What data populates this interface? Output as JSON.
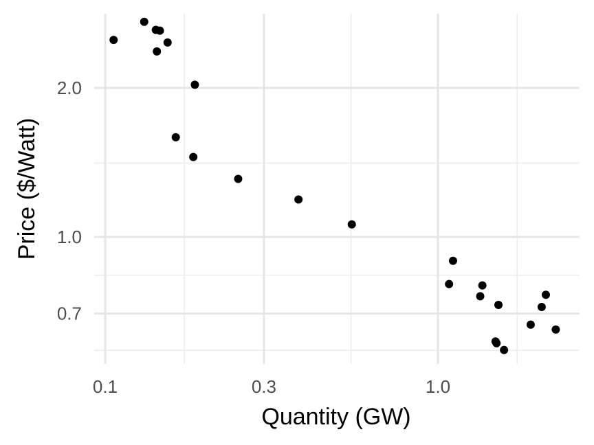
{
  "chart_data": {
    "type": "scatter",
    "title": "",
    "xlabel": "Quantity (GW)",
    "ylabel": "Price ($/Watt)",
    "x_scale": "log10",
    "y_scale": "log10",
    "xlim": [
      0.1,
      3.1
    ],
    "ylim": [
      0.54,
      2.85
    ],
    "x_ticks": [
      {
        "value": 0.1,
        "label": "0.1"
      },
      {
        "value": 0.3,
        "label": "0.3"
      },
      {
        "value": 1.0,
        "label": "1.0"
      }
    ],
    "y_ticks": [
      {
        "value": 0.7,
        "label": "0.7"
      },
      {
        "value": 1.0,
        "label": "1.0"
      },
      {
        "value": 2.0,
        "label": "2.0"
      }
    ],
    "x_minor_gridlines": [
      0.173,
      0.548,
      1.73
    ],
    "y_minor_gridlines": [
      0.59,
      0.837,
      1.41
    ],
    "grid": true,
    "legend": "none",
    "point_color": "#000000",
    "points": [
      {
        "x": 0.106,
        "y": 2.5
      },
      {
        "x": 0.131,
        "y": 2.72
      },
      {
        "x": 0.142,
        "y": 2.62
      },
      {
        "x": 0.146,
        "y": 2.61
      },
      {
        "x": 0.154,
        "y": 2.47
      },
      {
        "x": 0.143,
        "y": 2.37
      },
      {
        "x": 0.186,
        "y": 2.03
      },
      {
        "x": 0.163,
        "y": 1.59
      },
      {
        "x": 0.184,
        "y": 1.45
      },
      {
        "x": 0.251,
        "y": 1.31
      },
      {
        "x": 0.381,
        "y": 1.19
      },
      {
        "x": 0.551,
        "y": 1.06
      },
      {
        "x": 1.11,
        "y": 0.895
      },
      {
        "x": 1.08,
        "y": 0.803
      },
      {
        "x": 1.36,
        "y": 0.798
      },
      {
        "x": 1.34,
        "y": 0.759
      },
      {
        "x": 1.52,
        "y": 0.729
      },
      {
        "x": 1.49,
        "y": 0.615
      },
      {
        "x": 1.5,
        "y": 0.61
      },
      {
        "x": 1.58,
        "y": 0.591
      },
      {
        "x": 1.9,
        "y": 0.665
      },
      {
        "x": 2.05,
        "y": 0.722
      },
      {
        "x": 2.11,
        "y": 0.764
      },
      {
        "x": 2.26,
        "y": 0.65
      }
    ]
  }
}
